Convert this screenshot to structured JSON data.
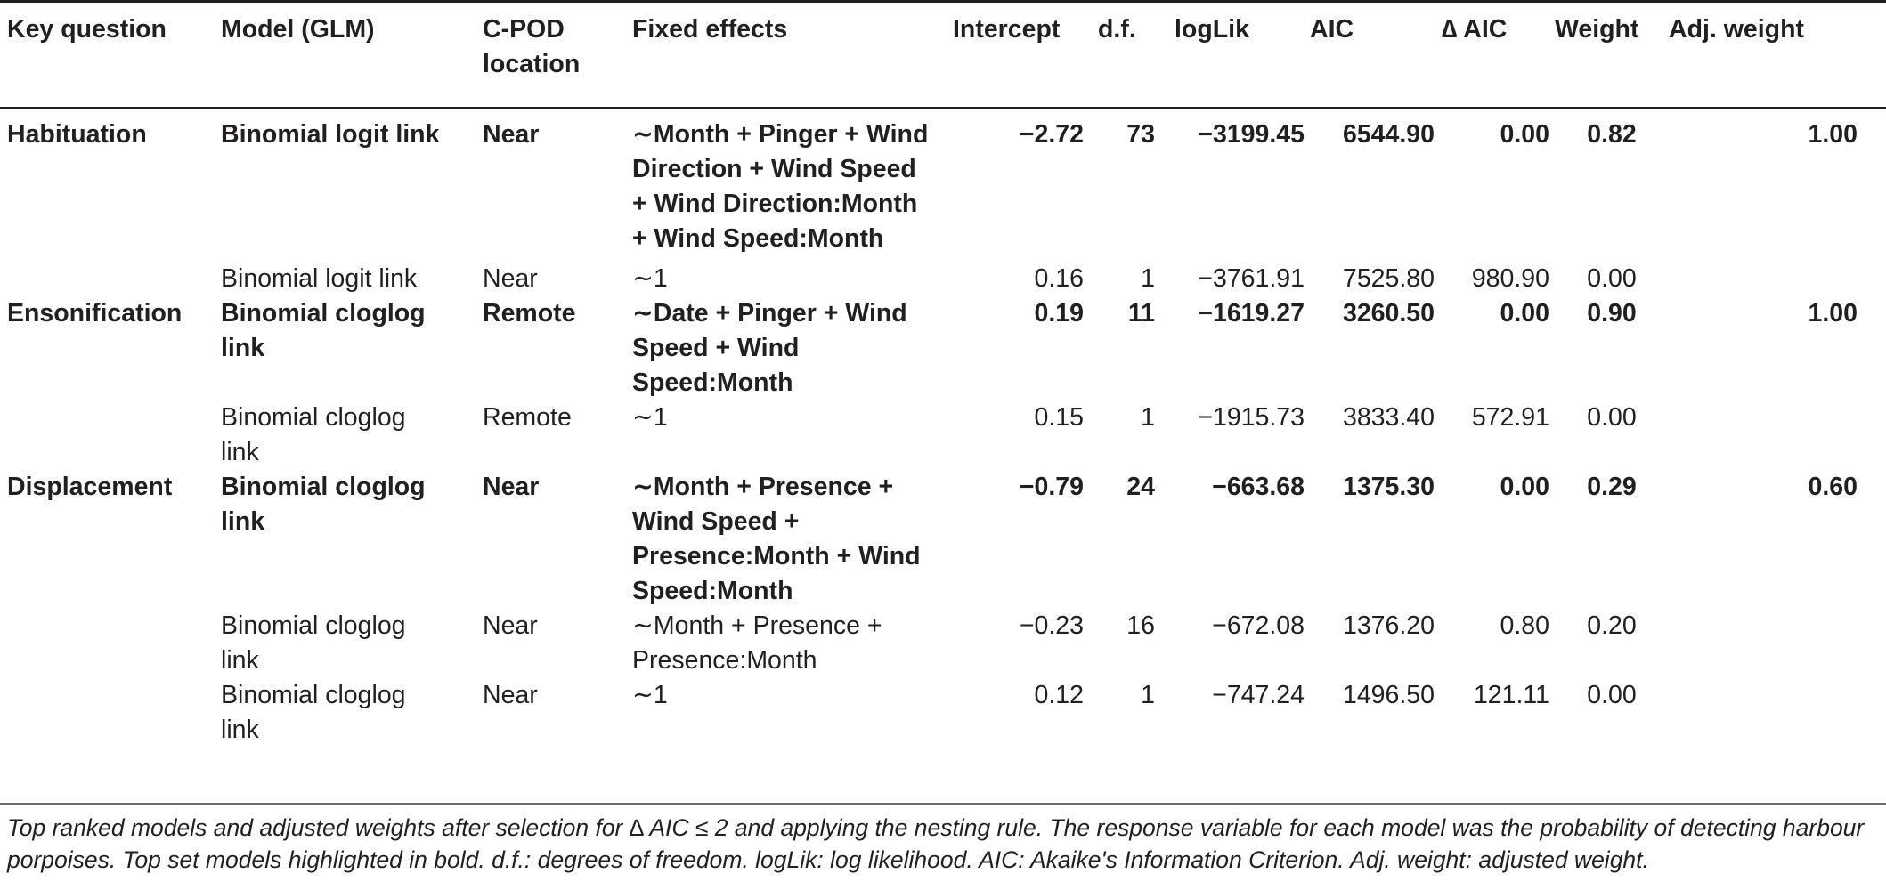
{
  "table": {
    "headers": {
      "key_question": "Key question",
      "model": "Model (GLM)",
      "cpod": "C-POD\nlocation",
      "fixed": "Fixed effects",
      "intercept": "Intercept",
      "df": "d.f.",
      "loglik": "logLik",
      "aic": "AIC",
      "delta_aic": "∆ AIC",
      "weight": "Weight",
      "adj_weight": "Adj. weight"
    },
    "rows": [
      {
        "key": "Habituation",
        "model": "Binomial logit link",
        "cpod": "Near",
        "fixed": "∼Month + Pinger + Wind\nDirection + Wind Speed\n+ Wind Direction:Month\n+ Wind Speed:Month",
        "intercept": "−2.72",
        "df": "73",
        "loglik": "−3199.45",
        "aic": "6544.90",
        "delta": "0.00",
        "weight": "0.82",
        "adj": "1.00"
      },
      {
        "key": "",
        "model": "Binomial logit link",
        "cpod": "Near",
        "fixed": "∼1",
        "intercept": "0.16",
        "df": "1",
        "loglik": "−3761.91",
        "aic": "7525.80",
        "delta": "980.90",
        "weight": "0.00",
        "adj": ""
      },
      {
        "key": "Ensonification",
        "model": "Binomial cloglog\nlink",
        "cpod": "Remote",
        "fixed": "∼Date + Pinger + Wind\nSpeed + Wind\nSpeed:Month",
        "intercept": "0.19",
        "df": "11",
        "loglik": "−1619.27",
        "aic": "3260.50",
        "delta": "0.00",
        "weight": "0.90",
        "adj": "1.00"
      },
      {
        "key": "",
        "model": "Binomial cloglog\nlink",
        "cpod": "Remote",
        "fixed": "∼1",
        "intercept": "0.15",
        "df": "1",
        "loglik": "−1915.73",
        "aic": "3833.40",
        "delta": "572.91",
        "weight": "0.00",
        "adj": ""
      },
      {
        "key": "Displacement",
        "model": "Binomial cloglog\nlink",
        "cpod": "Near",
        "fixed": "∼Month + Presence +\nWind Speed +\nPresence:Month + Wind\nSpeed:Month",
        "intercept": "−0.79",
        "df": "24",
        "loglik": "−663.68",
        "aic": "1375.30",
        "delta": "0.00",
        "weight": "0.29",
        "adj": "0.60"
      },
      {
        "key": "",
        "model": "Binomial cloglog\nlink",
        "cpod": "Near",
        "fixed": "∼Month + Presence +\nPresence:Month",
        "intercept": "−0.23",
        "df": "16",
        "loglik": "−672.08",
        "aic": "1376.20",
        "delta": "0.80",
        "weight": "0.20",
        "adj": ""
      },
      {
        "key": "",
        "model": "Binomial cloglog\nlink",
        "cpod": "Near",
        "fixed": "∼1",
        "intercept": "0.12",
        "df": "1",
        "loglik": "−747.24",
        "aic": "1496.50",
        "delta": "121.11",
        "weight": "0.00",
        "adj": ""
      }
    ]
  },
  "caption": "Top ranked models and adjusted weights after selection for ∆ AIC ≤ 2 and applying the nesting rule. The response variable for each model was the probability of detecting harbour porpoises. Top set models highlighted in bold. d.f.: degrees of freedom. logLik: log likelihood. AIC: Akaike's Information Criterion. Adj. weight: adjusted weight."
}
